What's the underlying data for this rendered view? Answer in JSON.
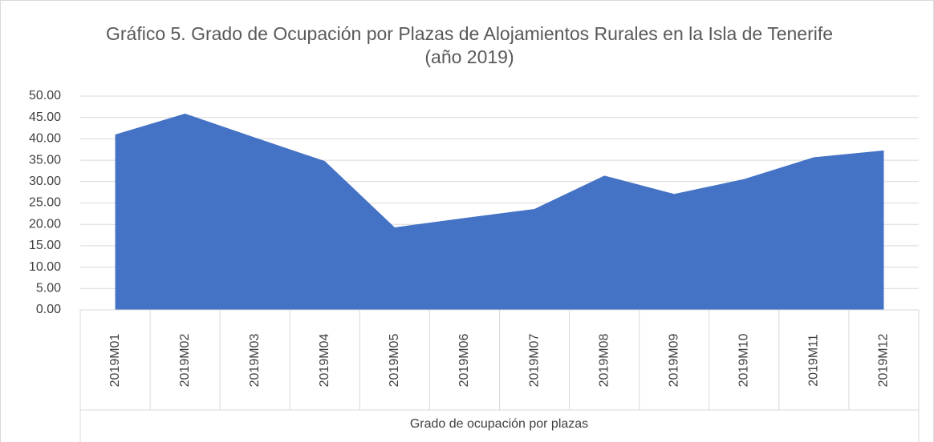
{
  "chart_data": {
    "type": "area",
    "title": "Gráfico 5. Grado de Ocupación por Plazas de Alojamientos Rurales en la Isla de Tenerife (año 2019)",
    "x_label": "Grado de ocupación por plazas",
    "categories": [
      "2019M01",
      "2019M02",
      "2019M03",
      "2019M04",
      "2019M05",
      "2019M06",
      "2019M07",
      "2019M08",
      "2019M09",
      "2019M10",
      "2019M11",
      "2019M12"
    ],
    "values": [
      41.0,
      45.9,
      40.3,
      34.8,
      19.3,
      21.5,
      23.6,
      31.4,
      27.1,
      30.6,
      35.7,
      37.3
    ],
    "color": "#4472c4",
    "ylim": [
      0,
      50
    ],
    "yticks": [
      {
        "value": 0,
        "label": "0.00"
      },
      {
        "value": 5,
        "label": "5.00"
      },
      {
        "value": 10,
        "label": "10.00"
      },
      {
        "value": 15,
        "label": "15.00"
      },
      {
        "value": 20,
        "label": "20.00"
      },
      {
        "value": 25,
        "label": "25.00"
      },
      {
        "value": 30,
        "label": "30.00"
      },
      {
        "value": 35,
        "label": "35.00"
      },
      {
        "value": 40,
        "label": "40.00"
      },
      {
        "value": 45,
        "label": "45.00"
      },
      {
        "value": 50,
        "label": "50.00"
      }
    ],
    "grid": true
  }
}
